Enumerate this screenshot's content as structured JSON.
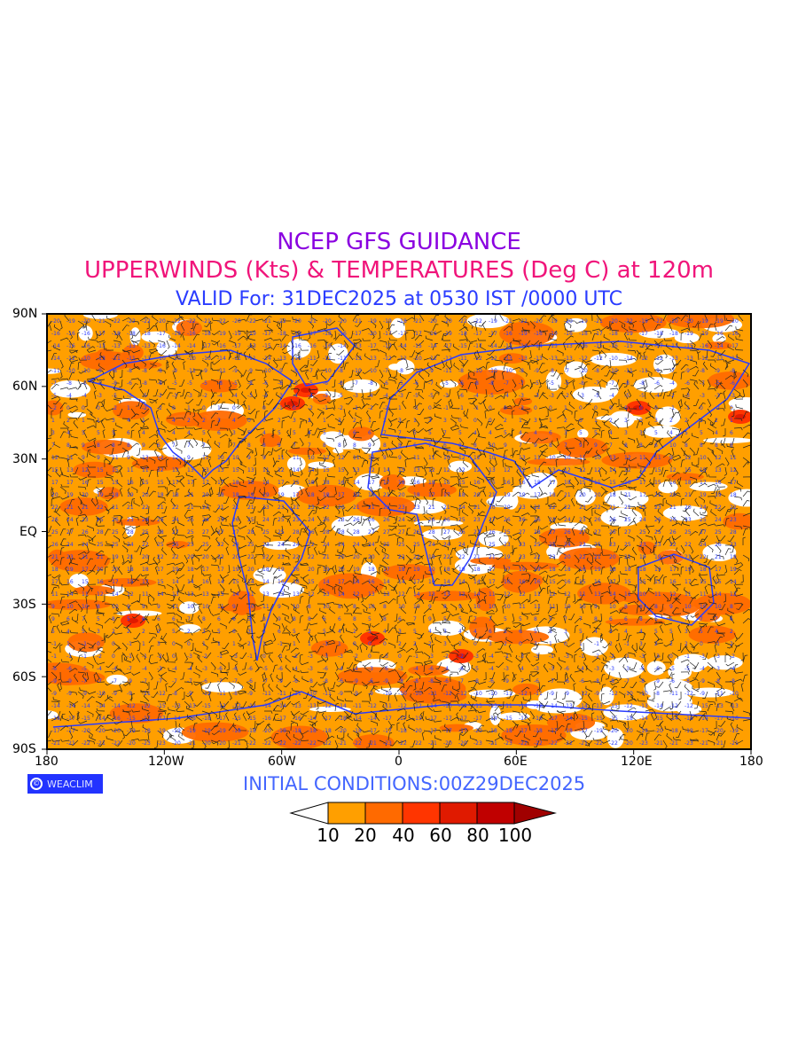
{
  "titles": {
    "line1": "NCEP GFS GUIDANCE",
    "line2": "UPPERWINDS (Kts) & TEMPERATURES (Deg C) at 120m",
    "line3": "VALID For: 31DEC2025 at 0530 IST /0000 UTC"
  },
  "axes": {
    "lat_labels": [
      "90N",
      "60N",
      "30N",
      "EQ",
      "30S",
      "60S",
      "90S"
    ],
    "lon_labels": [
      "180",
      "120W",
      "60W",
      "0",
      "60E",
      "120E",
      "180"
    ]
  },
  "logo": {
    "symbol": "©",
    "text": "WEACLIM"
  },
  "initial_conditions": "INITIAL CONDITIONS:00Z29DEC2025",
  "legend": {
    "unit": "Kts",
    "levels": [
      "10",
      "20",
      "40",
      "60",
      "80",
      "100"
    ],
    "colors": [
      "#ffffff",
      "#ff9f00",
      "#ff6a00",
      "#ff3500",
      "#e01a00",
      "#c00000",
      "#a00000"
    ]
  },
  "colors": {
    "coastline": "#2a3cff",
    "barbs": "#000000",
    "temperature_labels": "#2a3cff"
  }
}
